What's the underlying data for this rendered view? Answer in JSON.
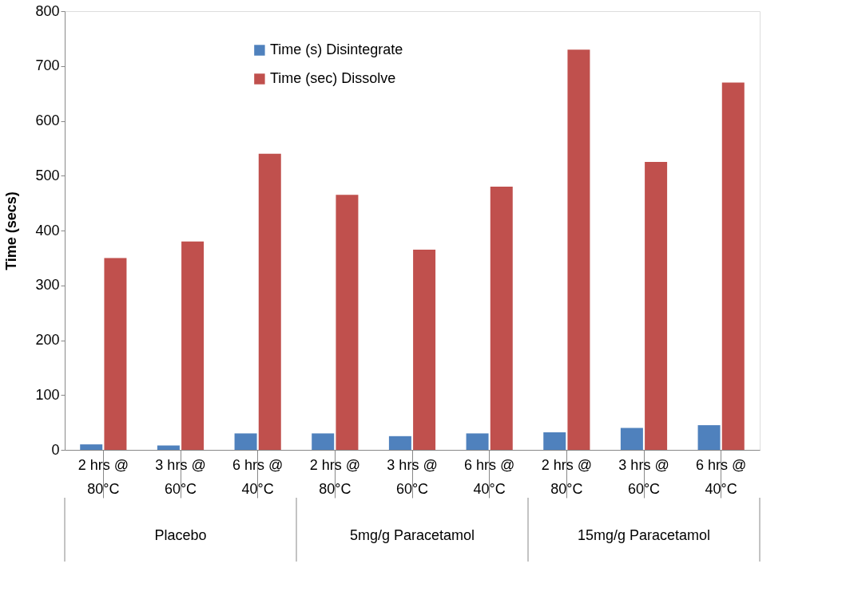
{
  "chart_data": {
    "type": "bar",
    "ylabel": "Time (secs)",
    "categories": [
      "2 hrs @ 80°C",
      "3 hrs @ 60°C",
      "6 hrs @ 40°C",
      "2 hrs @ 80°C",
      "3 hrs @ 60°C",
      "6 hrs @ 40°C",
      "2 hrs @ 80°C",
      "3 hrs @ 60°C",
      "6 hrs @ 40°C"
    ],
    "series": [
      {
        "name": "Time (s) Disintegrate",
        "color": "#4f81bd",
        "values": [
          10,
          8,
          30,
          30,
          25,
          30,
          32,
          40,
          45
        ]
      },
      {
        "name": "Time (sec) Dissolve",
        "color": "#c0504d",
        "values": [
          350,
          380,
          540,
          465,
          365,
          480,
          730,
          525,
          670
        ]
      }
    ],
    "ylim": [
      0,
      800
    ],
    "yticks": [
      0,
      100,
      200,
      300,
      400,
      500,
      600,
      700,
      800
    ],
    "legend": "top",
    "grid": false,
    "annotations": [
      "Placebo",
      "5mg/g Paracetamol",
      "15mg/g Paracetamol"
    ]
  }
}
